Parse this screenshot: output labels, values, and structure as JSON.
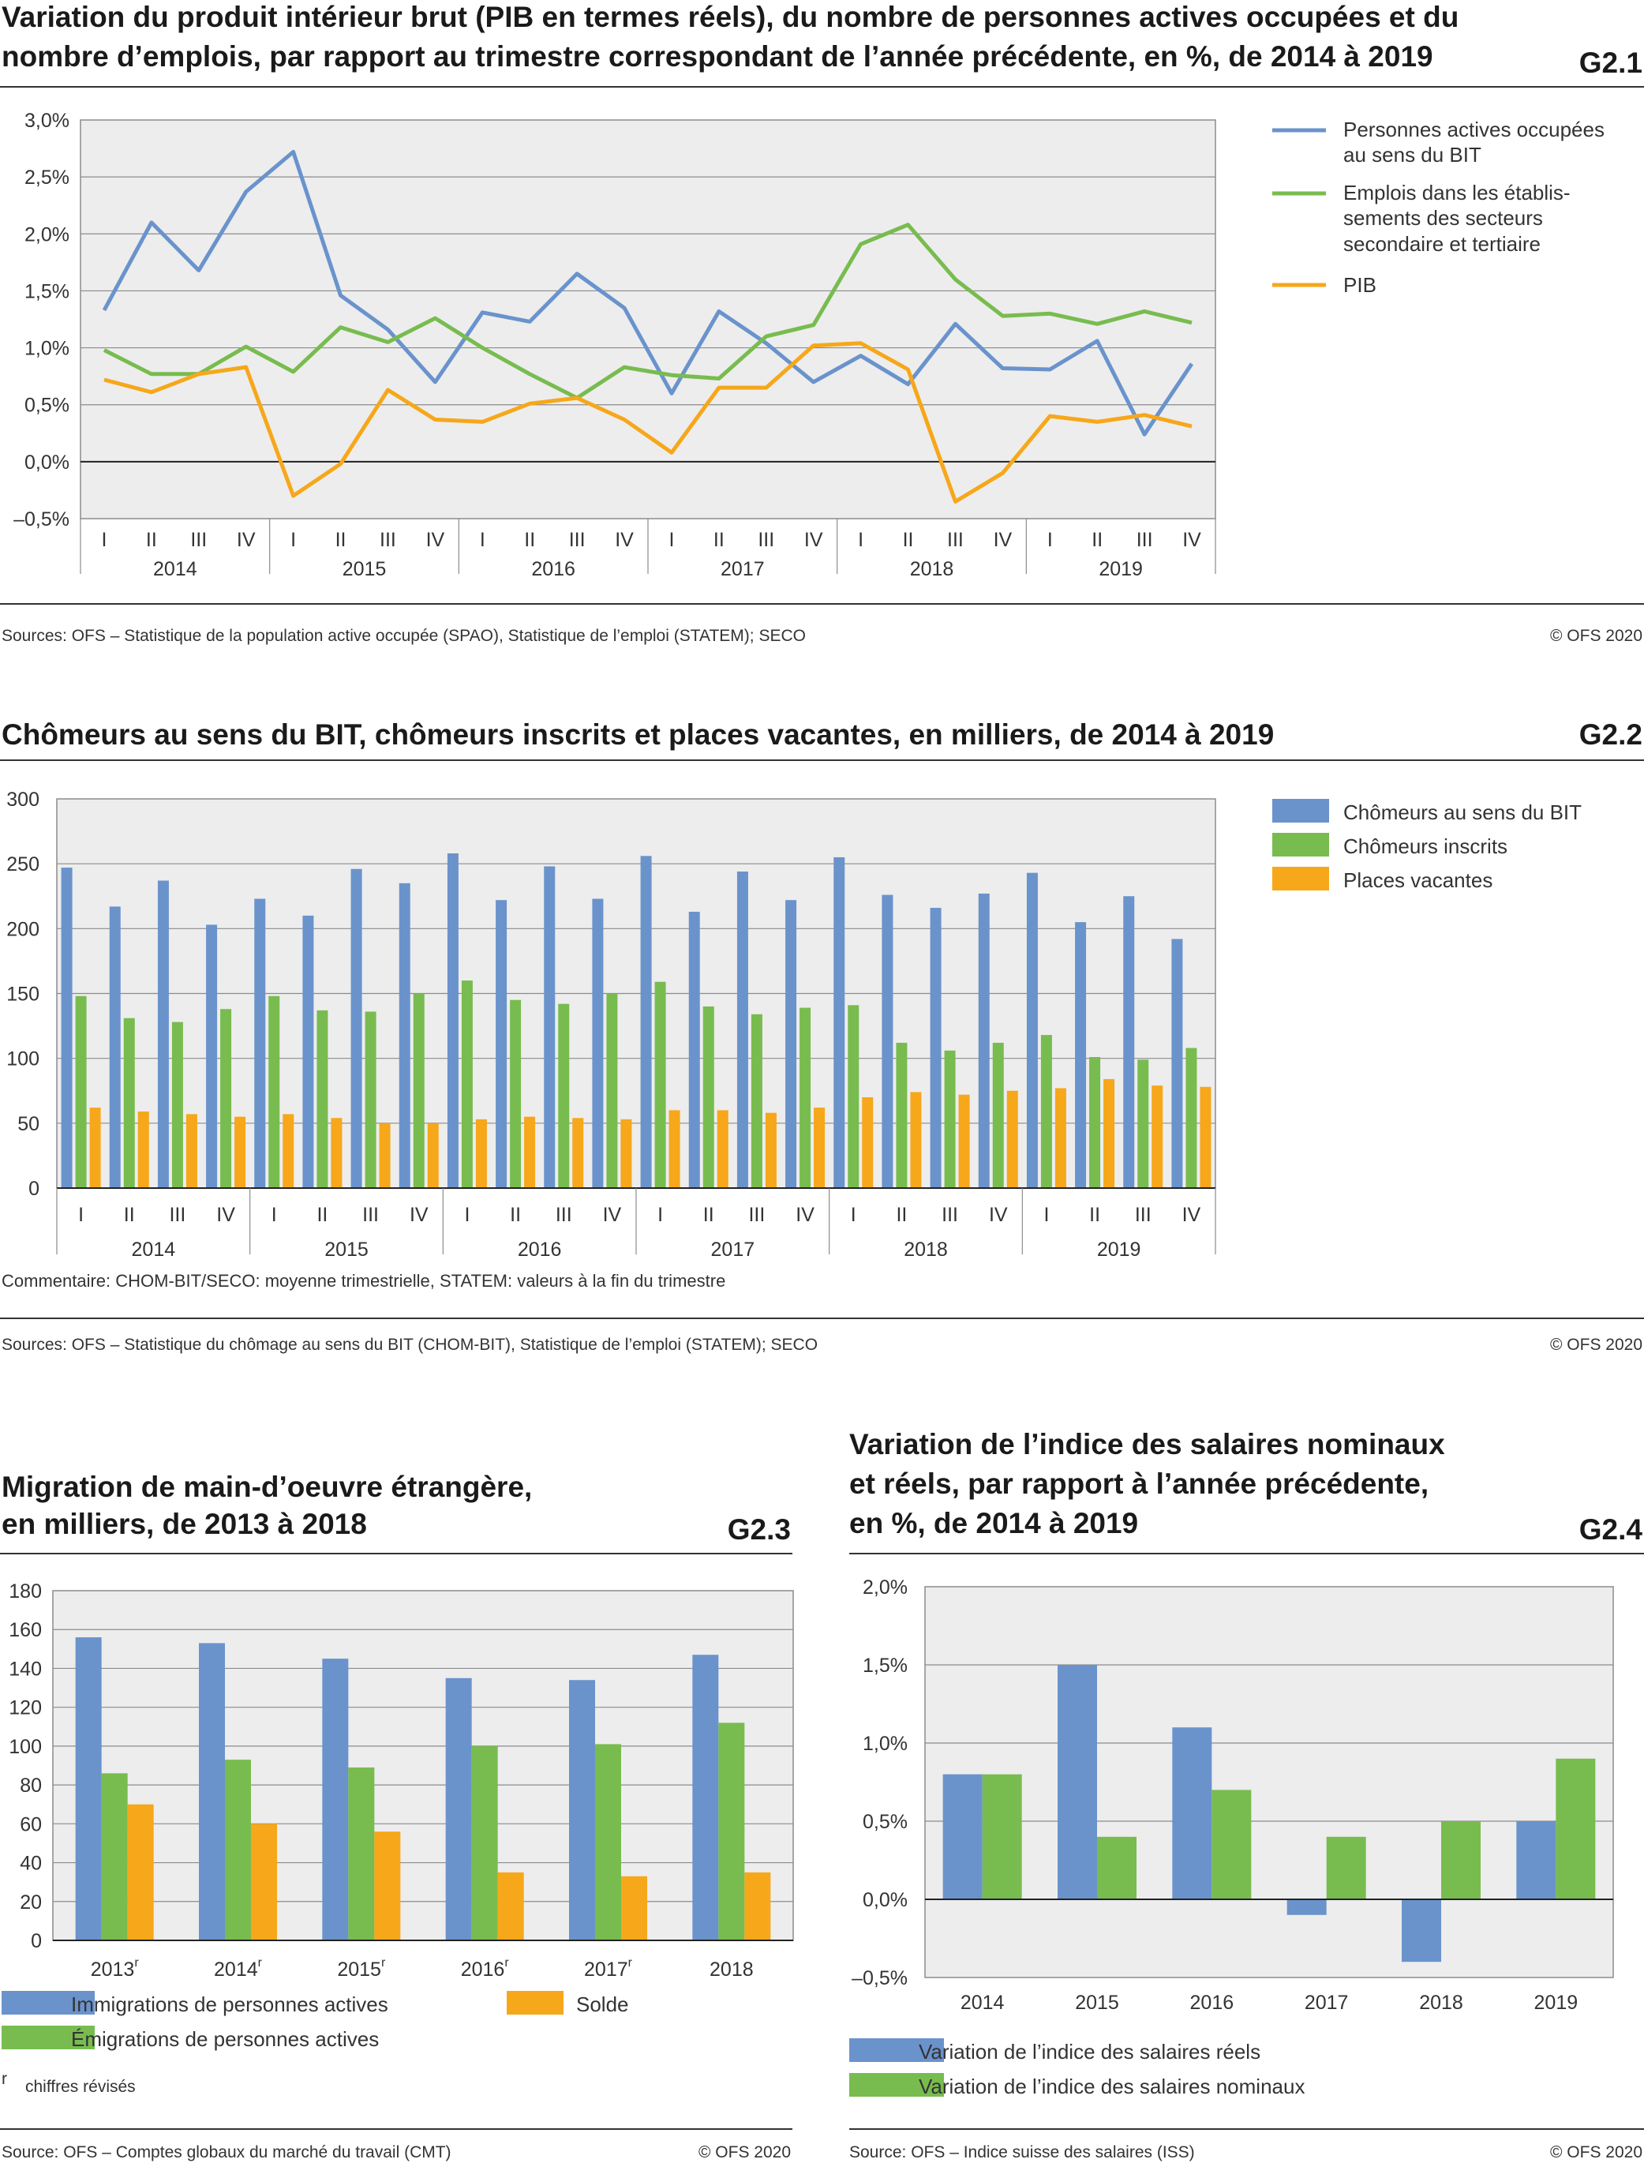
{
  "colors": {
    "blue": "#6a93cc",
    "green": "#78bc4f",
    "orange": "#f6a71a",
    "plot_bg": "#ededed",
    "grid": "#8c8c8c",
    "rule": "#333333"
  },
  "g21": {
    "title_line1": "Variation du produit intérieur brut (PIB en termes réels), du nombre de personnes actives occupées et du",
    "title_line2": "nombre d’emplois, par rapport au trimestre correspondant de l’année précédente, en %, de 2014 à 2019",
    "id": "G2.1",
    "legend": {
      "s1_l1": "Personnes actives occupées",
      "s1_l2": "au sens du BIT",
      "s2_l1": "Emplois dans les établis-",
      "s2_l2": "sements des secteurs",
      "s2_l3": "secondaire et tertiaire",
      "s3_l1": "PIB"
    },
    "source": "Sources: OFS – Statistique de la population active occupée (SPAO), Statistique de l’emploi (STATEM); SECO",
    "copyright": "© OFS 2020",
    "chart_data": {
      "type": "line",
      "quarters": [
        "I",
        "II",
        "III",
        "IV"
      ],
      "years": [
        "2014",
        "2015",
        "2016",
        "2017",
        "2018",
        "2019"
      ],
      "y_ticks": [
        "3,0%",
        "2,5%",
        "2,0%",
        "1,5%",
        "1,0%",
        "0,5%",
        "0,0%",
        "–0,5%"
      ],
      "ylim": [
        -0.5,
        3.0
      ],
      "series": [
        {
          "name": "Personnes actives occupées au sens du BIT",
          "color": "#6a93cc",
          "values": [
            1.33,
            2.1,
            1.68,
            2.37,
            2.72,
            1.46,
            1.16,
            0.7,
            1.31,
            1.23,
            1.65,
            1.35,
            0.6,
            1.32,
            1.04,
            0.7,
            0.93,
            0.68,
            1.21,
            0.82,
            0.81,
            1.06,
            0.24,
            0.86
          ]
        },
        {
          "name": "Emplois dans les établissements des secteurs secondaire et tertiaire",
          "color": "#78bc4f",
          "values": [
            0.98,
            0.77,
            0.77,
            1.01,
            0.79,
            1.18,
            1.05,
            1.26,
            1.0,
            0.77,
            0.56,
            0.83,
            0.76,
            0.73,
            1.1,
            1.2,
            1.91,
            2.08,
            1.6,
            1.28,
            1.3,
            1.21,
            1.32,
            1.22
          ]
        },
        {
          "name": "PIB",
          "color": "#f6a71a",
          "values": [
            0.72,
            0.61,
            0.77,
            0.83,
            -0.3,
            -0.02,
            0.63,
            0.37,
            0.35,
            0.51,
            0.56,
            0.37,
            0.08,
            0.65,
            0.65,
            1.02,
            1.04,
            0.81,
            -0.35,
            -0.1,
            0.4,
            0.35,
            0.41,
            0.31
          ]
        }
      ]
    }
  },
  "g22": {
    "title": "Chômeurs au sens du BIT, chômeurs inscrits et places vacantes, en milliers, de 2014 à 2019",
    "id": "G2.2",
    "legend": [
      "Chômeurs au sens du BIT",
      "Chômeurs inscrits",
      "Places vacantes"
    ],
    "comment": "Commentaire: CHOM-BIT/SECO: moyenne trimestrielle, STATEM: valeurs à la fin du trimestre",
    "source": "Sources: OFS – Statistique du chômage au sens du BIT (CHOM-BIT), Statistique de l’emploi (STATEM); SECO",
    "copyright": "© OFS 2020",
    "chart_data": {
      "type": "bar",
      "quarters": [
        "I",
        "II",
        "III",
        "IV"
      ],
      "years": [
        "2014",
        "2015",
        "2016",
        "2017",
        "2018",
        "2019"
      ],
      "y_ticks": [
        "300",
        "250",
        "200",
        "150",
        "100",
        "50",
        "0"
      ],
      "ylim": [
        0,
        300
      ],
      "series": [
        {
          "name": "Chômeurs au sens du BIT",
          "color": "#6a93cc",
          "values": [
            247,
            217,
            237,
            203,
            223,
            210,
            246,
            235,
            258,
            222,
            248,
            223,
            256,
            213,
            244,
            222,
            255,
            226,
            216,
            227,
            243,
            205,
            225,
            192
          ]
        },
        {
          "name": "Chômeurs inscrits",
          "color": "#78bc4f",
          "values": [
            148,
            131,
            128,
            138,
            148,
            137,
            136,
            150,
            160,
            145,
            142,
            150,
            159,
            140,
            134,
            139,
            141,
            112,
            106,
            112,
            118,
            101,
            99,
            108
          ]
        },
        {
          "name": "Places vacantes",
          "color": "#f6a71a",
          "values": [
            62,
            59,
            57,
            55,
            57,
            54,
            50,
            50,
            53,
            55,
            54,
            53,
            60,
            60,
            58,
            62,
            70,
            74,
            72,
            75,
            77,
            84,
            79,
            78
          ]
        }
      ]
    }
  },
  "g23": {
    "title_line1": "Migration de main-d’oeuvre étrangère,",
    "title_line2": "en milliers, de 2013 à 2018",
    "id": "G2.3",
    "legend": [
      "Immigrations de personnes actives",
      "Émigrations de personnes actives",
      "Solde"
    ],
    "footnote_mark": "r",
    "footnote": "chiffres révisés",
    "source": "Source: OFS – Comptes globaux du marché du travail (CMT)",
    "copyright": "© OFS 2020",
    "chart_data": {
      "type": "bar",
      "categories": [
        "2013",
        "2014",
        "2015",
        "2016",
        "2017",
        "2018"
      ],
      "category_marks": [
        "r",
        "r",
        "r",
        "r",
        "r",
        ""
      ],
      "y_ticks": [
        "180",
        "160",
        "140",
        "120",
        "100",
        "80",
        "60",
        "40",
        "20",
        "0"
      ],
      "ylim": [
        0,
        180
      ],
      "series": [
        {
          "name": "Immigrations de personnes actives",
          "color": "#6a93cc",
          "values": [
            156,
            153,
            145,
            135,
            134,
            147
          ]
        },
        {
          "name": "Émigrations de personnes actives",
          "color": "#78bc4f",
          "values": [
            86,
            93,
            89,
            100,
            101,
            112
          ]
        },
        {
          "name": "Solde",
          "color": "#f6a71a",
          "values": [
            70,
            60,
            56,
            35,
            33,
            35
          ]
        }
      ]
    }
  },
  "g24": {
    "title_line1": "Variation de l’indice des salaires nominaux",
    "title_line2": "et réels, par rapport à l’année précédente,",
    "title_line3": "en %, de 2014 à 2019",
    "id": "G2.4",
    "legend": [
      "Variation de l’indice des salaires réels",
      "Variation de l’indice des salaires nominaux"
    ],
    "source": "Source: OFS – Indice suisse des salaires (ISS)",
    "copyright": "© OFS 2020",
    "chart_data": {
      "type": "bar",
      "categories": [
        "2014",
        "2015",
        "2016",
        "2017",
        "2018",
        "2019"
      ],
      "y_ticks": [
        "2,0%",
        "1,5%",
        "1,0%",
        "0,5%",
        "0,0%",
        "–0,5%"
      ],
      "ylim": [
        -0.5,
        2.0
      ],
      "series": [
        {
          "name": "Variation de l’indice des salaires réels",
          "color": "#6a93cc",
          "values": [
            0.8,
            1.5,
            1.1,
            -0.1,
            -0.4,
            0.5
          ]
        },
        {
          "name": "Variation de l’indice des salaires nominaux",
          "color": "#78bc4f",
          "values": [
            0.8,
            0.4,
            0.7,
            0.4,
            0.5,
            0.9
          ]
        }
      ]
    }
  }
}
